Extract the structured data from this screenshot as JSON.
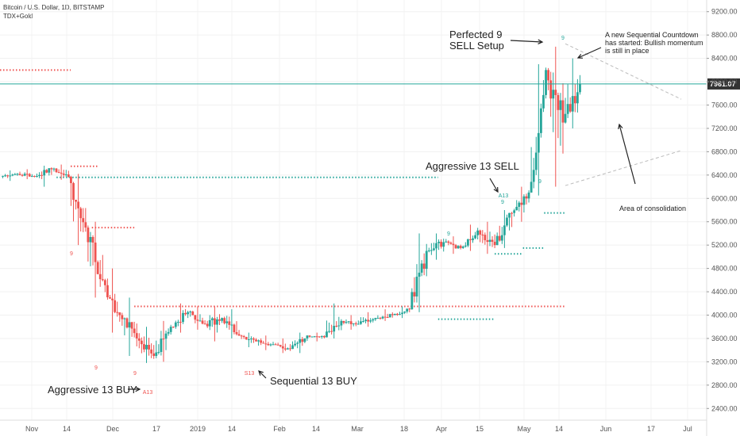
{
  "header": {
    "symbol_line": "Bitcoin / U.S. Dollar, 1D, BITSTAMP",
    "indicator": "TDX+Gold"
  },
  "colors": {
    "up": "#26a69a",
    "down": "#ef5350",
    "price_line": "#26a69a",
    "setup_red": "#ef5350",
    "setup_green": "#26a69a",
    "arrow": "#222222",
    "trendline": "#bbbbbb"
  },
  "chart_data": {
    "type": "candlestick",
    "symbol": "Bitcoin / U.S. Dollar",
    "interval": "1D",
    "exchange": "BITSTAMP",
    "indicator": "TDX+Gold",
    "ylim": [
      2200,
      9400
    ],
    "y_ticks": [
      "9200.00",
      "8800.00",
      "8400.00",
      "8000.00",
      "7600.00",
      "7200.00",
      "6800.00",
      "6400.00",
      "6000.00",
      "5600.00",
      "5200.00",
      "4800.00",
      "4400.00",
      "4000.00",
      "3600.00",
      "3200.00",
      "2800.00",
      "2400.00"
    ],
    "x_ticks": [
      "Nov",
      "14",
      "Dec",
      "17",
      "2019",
      "14",
      "Feb",
      "14",
      "Mar",
      "18",
      "Apr",
      "15",
      "May",
      "14",
      "Jun",
      "17",
      "Jul"
    ],
    "last_price": 7961.07,
    "last_price_label": "7961.07",
    "candles_weekly": [
      {
        "o": 6380,
        "h": 6480,
        "l": 6300,
        "c": 6420
      },
      {
        "o": 6420,
        "h": 6500,
        "l": 6330,
        "c": 6380
      },
      {
        "o": 6380,
        "h": 6560,
        "l": 6200,
        "c": 6500
      },
      {
        "o": 6500,
        "h": 6580,
        "l": 6320,
        "c": 6370
      },
      {
        "o": 6370,
        "h": 6420,
        "l": 5200,
        "c": 5500
      },
      {
        "o": 5500,
        "h": 5600,
        "l": 4300,
        "c": 4600
      },
      {
        "o": 4600,
        "h": 4800,
        "l": 3700,
        "c": 4000
      },
      {
        "o": 4000,
        "h": 4300,
        "l": 3300,
        "c": 3600
      },
      {
        "o": 3600,
        "h": 3800,
        "l": 3180,
        "c": 3300
      },
      {
        "o": 3300,
        "h": 3900,
        "l": 3200,
        "c": 3800
      },
      {
        "o": 3800,
        "h": 4200,
        "l": 3700,
        "c": 4050
      },
      {
        "o": 4050,
        "h": 4150,
        "l": 3750,
        "c": 3850
      },
      {
        "o": 3850,
        "h": 4150,
        "l": 3550,
        "c": 3950
      },
      {
        "o": 3950,
        "h": 4100,
        "l": 3600,
        "c": 3650
      },
      {
        "o": 3650,
        "h": 3700,
        "l": 3450,
        "c": 3550
      },
      {
        "o": 3550,
        "h": 3650,
        "l": 3400,
        "c": 3500
      },
      {
        "o": 3500,
        "h": 3600,
        "l": 3350,
        "c": 3420
      },
      {
        "o": 3420,
        "h": 3700,
        "l": 3350,
        "c": 3650
      },
      {
        "o": 3650,
        "h": 3700,
        "l": 3550,
        "c": 3620
      },
      {
        "o": 3620,
        "h": 4200,
        "l": 3600,
        "c": 3900
      },
      {
        "o": 3900,
        "h": 4000,
        "l": 3750,
        "c": 3850
      },
      {
        "o": 3850,
        "h": 4050,
        "l": 3800,
        "c": 3950
      },
      {
        "o": 3950,
        "h": 4100,
        "l": 3900,
        "c": 4000
      },
      {
        "o": 4000,
        "h": 4150,
        "l": 3950,
        "c": 4100
      },
      {
        "o": 4100,
        "h": 5400,
        "l": 4050,
        "c": 5100
      },
      {
        "o": 5100,
        "h": 5400,
        "l": 4950,
        "c": 5250
      },
      {
        "o": 5250,
        "h": 5350,
        "l": 5050,
        "c": 5150
      },
      {
        "o": 5150,
        "h": 5550,
        "l": 5100,
        "c": 5450
      },
      {
        "o": 5450,
        "h": 5600,
        "l": 5050,
        "c": 5200
      },
      {
        "o": 5200,
        "h": 5800,
        "l": 5150,
        "c": 5750
      },
      {
        "o": 5750,
        "h": 6200,
        "l": 5600,
        "c": 6100
      },
      {
        "o": 6100,
        "h": 8300,
        "l": 6050,
        "c": 8200
      },
      {
        "o": 8200,
        "h": 8600,
        "l": 6200,
        "c": 7300
      },
      {
        "o": 7300,
        "h": 8400,
        "l": 7200,
        "c": 7961
      }
    ],
    "levels": [
      {
        "name": "tdst-resistance-1",
        "color": "red",
        "price": 8200,
        "x_from": 0,
        "x_to": 0.1
      },
      {
        "name": "tdst-resistance-2",
        "color": "red",
        "price": 6550,
        "x_from": 0.1,
        "x_to": 0.14
      },
      {
        "name": "tdst-support-1",
        "color": "green",
        "price": 6360,
        "x_from": 0.08,
        "x_to": 0.62
      },
      {
        "name": "tdst-resistance-3",
        "color": "red",
        "price": 5500,
        "x_from": 0.13,
        "x_to": 0.19
      },
      {
        "name": "tdst-resistance-4",
        "color": "red",
        "price": 4150,
        "x_from": 0.19,
        "x_to": 0.8
      },
      {
        "name": "tdst-support-2",
        "color": "green",
        "price": 3930,
        "x_from": 0.62,
        "x_to": 0.7
      },
      {
        "name": "tdst-support-3",
        "color": "green",
        "price": 5050,
        "x_from": 0.7,
        "x_to": 0.74
      },
      {
        "name": "tdst-support-4",
        "color": "green",
        "price": 5150,
        "x_from": 0.74,
        "x_to": 0.77
      },
      {
        "name": "tdst-support-5",
        "color": "green",
        "price": 5750,
        "x_from": 0.77,
        "x_to": 0.8
      }
    ],
    "annotations": [
      {
        "text": "Perfected 9",
        "target": "setup-9-peak"
      },
      {
        "text": "SELL Setup",
        "target": "setup-9-peak"
      },
      {
        "text": "A new Sequential Countdown",
        "target": "countdown-start"
      },
      {
        "text": "has started: Bullish momentum",
        "target": "countdown-start"
      },
      {
        "text": "is still in place",
        "target": "countdown-start"
      },
      {
        "text": "Aggressive 13 SELL",
        "target": "A13-sell"
      },
      {
        "text": "Area of consolidation",
        "target": "triangle"
      },
      {
        "text": "Aggressive 13 BUY",
        "target": "A13-buy"
      },
      {
        "text": "Sequential 13 BUY",
        "target": "S13-buy"
      }
    ],
    "markers": [
      {
        "text": "9",
        "color": "green"
      },
      {
        "text": "9",
        "color": "red"
      },
      {
        "text": "9",
        "color": "red"
      },
      {
        "text": "9",
        "color": "red"
      },
      {
        "text": "A13",
        "color": "red"
      },
      {
        "text": "S13",
        "color": "red"
      },
      {
        "text": "A13",
        "color": "green"
      },
      {
        "text": "9",
        "color": "green"
      },
      {
        "text": "9",
        "color": "green"
      },
      {
        "text": "9",
        "color": "green"
      }
    ]
  }
}
